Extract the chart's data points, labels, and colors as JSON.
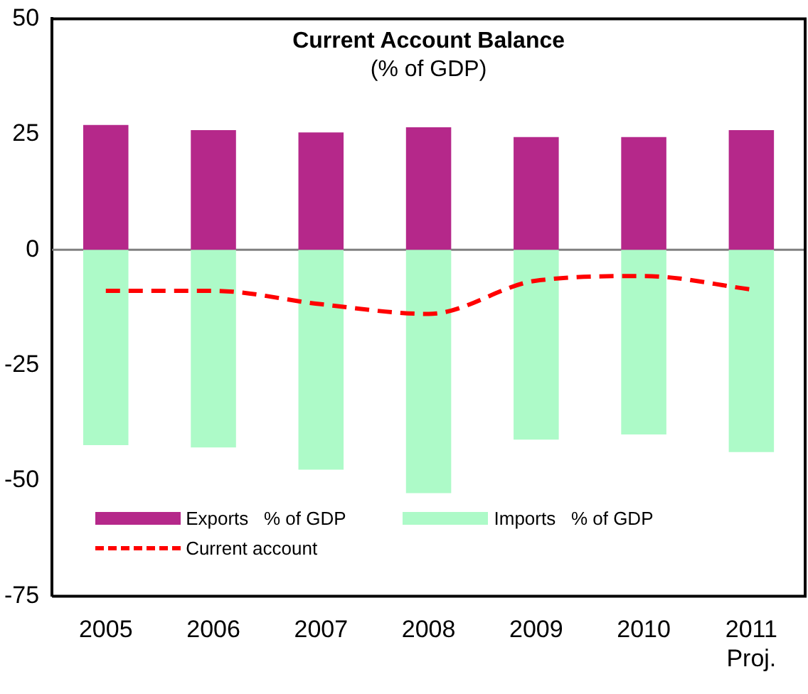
{
  "chart_data": {
    "type": "bar",
    "title": "Current Account Balance",
    "subtitle": "(% of GDP)",
    "categories": [
      "2005",
      "2006",
      "2007",
      "2008",
      "2009",
      "2010",
      "2011 Proj."
    ],
    "stacked": true,
    "ylim": [
      -75,
      50
    ],
    "yticks": [
      -75,
      -50,
      -25,
      0,
      25,
      50
    ],
    "grid": false,
    "legend": "bottom",
    "ref_lines": [
      {
        "axis": "y",
        "value": 0,
        "color": "#808080"
      }
    ],
    "series": [
      {
        "name": "Exports   % of GDP",
        "color": "#b5288a",
        "values": [
          27,
          25.9,
          25.4,
          26.5,
          24.4,
          24.4,
          25.9
        ]
      },
      {
        "name": "Imports   % of GDP",
        "color": "#adfac8",
        "values": [
          -42.3,
          -42.8,
          -47.6,
          -52.7,
          -41.1,
          -40,
          -43.8
        ]
      },
      {
        "name": "Current account",
        "type": "line",
        "color": "#ff0000",
        "line_style": "dashed",
        "marker": "none",
        "values": [
          -8.9,
          -8.9,
          -11.8,
          -13.9,
          -6.7,
          -5.7,
          -8.6
        ]
      }
    ]
  }
}
